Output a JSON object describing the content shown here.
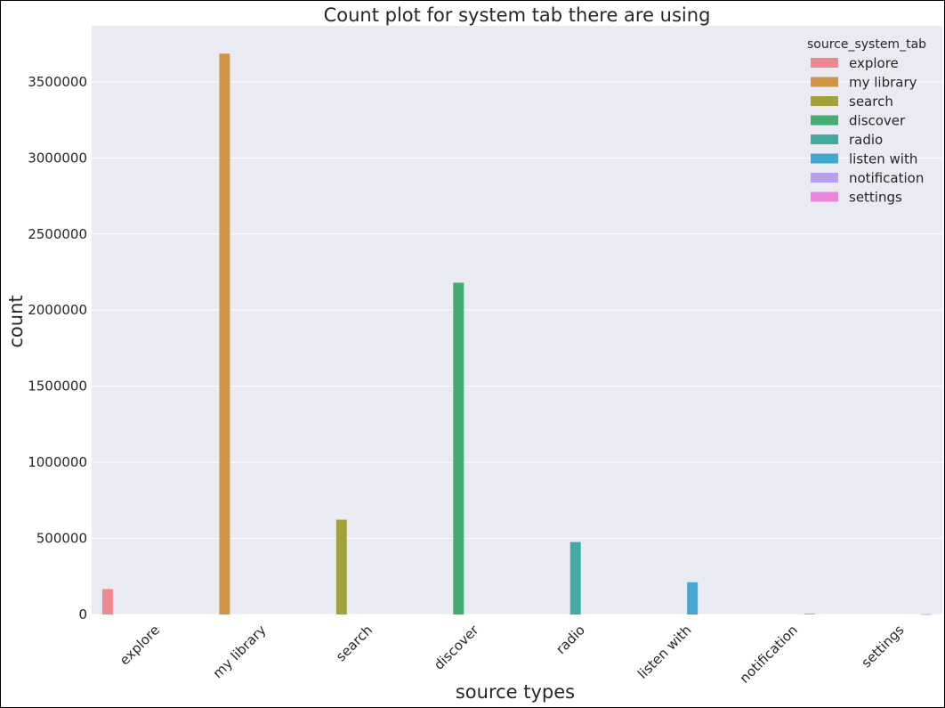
{
  "chart_data": {
    "type": "bar",
    "title": "Count plot for system tab there are using",
    "xlabel": "source types",
    "ylabel": "count",
    "categories": [
      "explore",
      "my library",
      "search",
      "discover",
      "radio",
      "listen with",
      "notification",
      "settings"
    ],
    "values": [
      167000,
      3685000,
      623000,
      2180000,
      476000,
      212000,
      6500,
      2200
    ],
    "hue_order": [
      "explore",
      "my library",
      "search",
      "discover",
      "radio",
      "listen with",
      "notification",
      "settings"
    ],
    "colors": [
      "#f0888f",
      "#cf9445",
      "#a1a23a",
      "#43ad70",
      "#41ab9f",
      "#45a8d3",
      "#b9a0ef",
      "#ec83dc"
    ],
    "ylim": [
      0,
      3868000
    ],
    "yticks": [
      0,
      500000,
      1000000,
      1500000,
      2000000,
      2500000,
      3000000,
      3500000
    ],
    "ytick_labels": [
      "0",
      "500000",
      "1000000",
      "1500000",
      "2000000",
      "2500000",
      "3000000",
      "3500000"
    ],
    "grid": true,
    "background": "#eaeaf2",
    "legend": {
      "title": "source_system_tab",
      "position": "top-right",
      "entries": [
        "explore",
        "my library",
        "search",
        "discover",
        "radio",
        "listen with",
        "notification",
        "settings"
      ]
    }
  }
}
